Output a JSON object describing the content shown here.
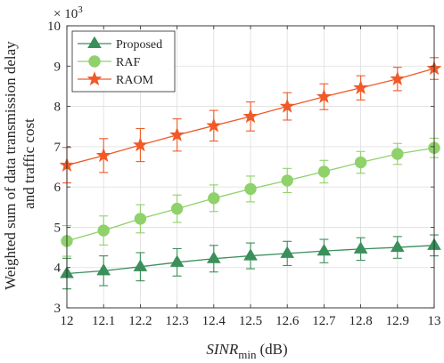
{
  "chart_data": {
    "type": "line",
    "title": "",
    "xlabel": "SINR",
    "xlabel_subscript": "min",
    "xlabel_unit": "(dB)",
    "ylabel_lines": [
      "Weighted sum of data transmission delay",
      "and traffic cost"
    ],
    "y_multiplier": {
      "base": "× 10",
      "exponent": "3"
    },
    "x": [
      12,
      12.1,
      12.2,
      12.3,
      12.4,
      12.5,
      12.6,
      12.7,
      12.8,
      12.9,
      13
    ],
    "x_tick_labels": [
      "12",
      "12.1",
      "12.2",
      "12.3",
      "12.4",
      "12.5",
      "12.6",
      "12.7",
      "12.8",
      "12.9",
      "13"
    ],
    "xlim": [
      12,
      13
    ],
    "ylim": [
      3,
      10
    ],
    "y_ticks": [
      3,
      4,
      5,
      6,
      7,
      8,
      9,
      10
    ],
    "y_tick_labels": [
      "3",
      "4",
      "5",
      "6",
      "7",
      "8",
      "9",
      "10"
    ],
    "grid": true,
    "legend_position": "top-left",
    "series": [
      {
        "name": "Proposed",
        "marker": "triangle",
        "color": "#3a8f5a",
        "values": [
          3.85,
          3.92,
          4.02,
          4.13,
          4.22,
          4.29,
          4.35,
          4.41,
          4.46,
          4.5,
          4.55
        ],
        "error": [
          0.38,
          0.37,
          0.35,
          0.34,
          0.33,
          0.32,
          0.3,
          0.29,
          0.28,
          0.27,
          0.26
        ]
      },
      {
        "name": "RAF",
        "marker": "circle",
        "color": "#8fd16a",
        "values": [
          4.66,
          4.92,
          5.21,
          5.46,
          5.72,
          5.95,
          6.16,
          6.38,
          6.61,
          6.82,
          6.97
        ],
        "error": [
          0.38,
          0.36,
          0.35,
          0.34,
          0.33,
          0.32,
          0.3,
          0.28,
          0.27,
          0.26,
          0.24
        ]
      },
      {
        "name": "RAOM",
        "marker": "star",
        "color": "#f05a28",
        "values": [
          6.54,
          6.78,
          7.04,
          7.29,
          7.52,
          7.75,
          8.0,
          8.24,
          8.46,
          8.68,
          8.94
        ],
        "error": [
          0.44,
          0.42,
          0.41,
          0.4,
          0.38,
          0.36,
          0.34,
          0.32,
          0.3,
          0.29,
          0.27
        ]
      }
    ]
  }
}
